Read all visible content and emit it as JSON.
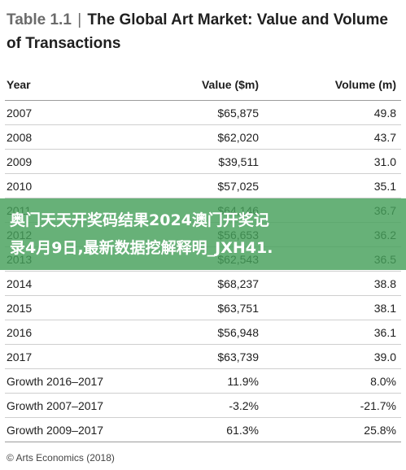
{
  "header": {
    "table_tag": "Table 1.1",
    "separator": "|",
    "title": "The Global Art Market: Value and Volume of Transactions"
  },
  "table": {
    "columns": [
      "Year",
      "Value ($m)",
      "Volume (m)"
    ],
    "rows": [
      [
        "2007",
        "$65,875",
        "49.8"
      ],
      [
        "2008",
        "$62,020",
        "43.7"
      ],
      [
        "2009",
        "$39,511",
        "31.0"
      ],
      [
        "2010",
        "$57,025",
        "35.1"
      ],
      [
        "2011",
        "$64,146",
        "36.7"
      ],
      [
        "2012",
        "$56,653",
        "36.2"
      ],
      [
        "2013",
        "$62,543",
        "36.5"
      ],
      [
        "2014",
        "$68,237",
        "38.8"
      ],
      [
        "2015",
        "$63,751",
        "38.1"
      ],
      [
        "2016",
        "$56,948",
        "36.1"
      ],
      [
        "2017",
        "$63,739",
        "39.0"
      ],
      [
        "Growth 2016–2017",
        "11.9%",
        "8.0%"
      ],
      [
        "Growth 2007–2017",
        "-3.2%",
        "-21.7%"
      ],
      [
        "Growth 2009–2017",
        "61.3%",
        "25.8%"
      ]
    ]
  },
  "footer": {
    "source": "© Arts Economics (2018)"
  },
  "banner": {
    "line1": "奥门天天开奖码结果2024澳门开奖记",
    "line2": "录4月9日,最新数据挖解释明_JXH41."
  }
}
